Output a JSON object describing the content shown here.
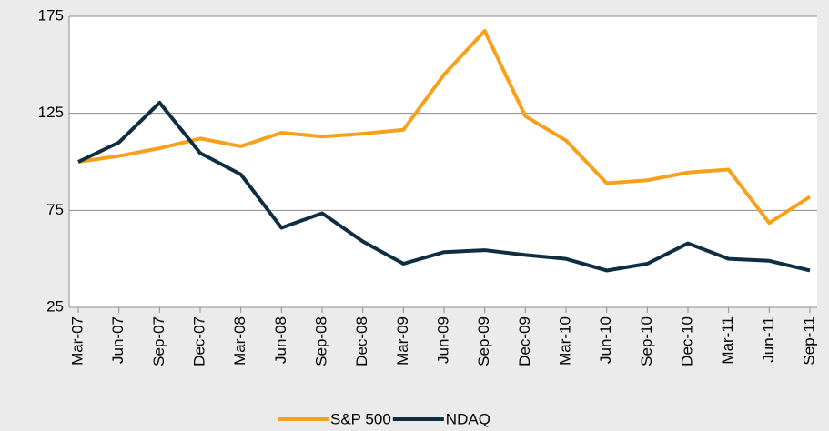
{
  "chart_data": {
    "type": "line",
    "categories": [
      "Mar-07",
      "Jun-07",
      "Sep-07",
      "Dec-07",
      "Mar-08",
      "Jun-08",
      "Sep-08",
      "Dec-08",
      "Mar-09",
      "Jun-09",
      "Sep-09",
      "Dec-09",
      "Mar-10",
      "Jun-10",
      "Sep-10",
      "Dec-10",
      "Mar-11",
      "Jun-11",
      "Sep-11"
    ],
    "series": [
      {
        "name": "S&P 500",
        "color": "#f7a11a",
        "values": [
          100,
          103,
          107,
          112,
          108,
          115,
          113,
          114.5,
          116.5,
          145,
          167.5,
          123.5,
          111,
          89,
          90.5,
          94.5,
          96,
          68.5,
          82
        ]
      },
      {
        "name": "NDAQ",
        "color": "#0e2e42",
        "values": [
          100,
          110,
          130.5,
          104.5,
          93.5,
          66,
          73.5,
          59,
          47.5,
          53.5,
          54.5,
          52,
          50,
          44,
          47.5,
          58,
          50,
          49,
          44
        ]
      }
    ],
    "ylim": [
      25,
      175
    ],
    "yticks": [
      25,
      75,
      125,
      175
    ],
    "grid": true,
    "legend": "bottom"
  }
}
